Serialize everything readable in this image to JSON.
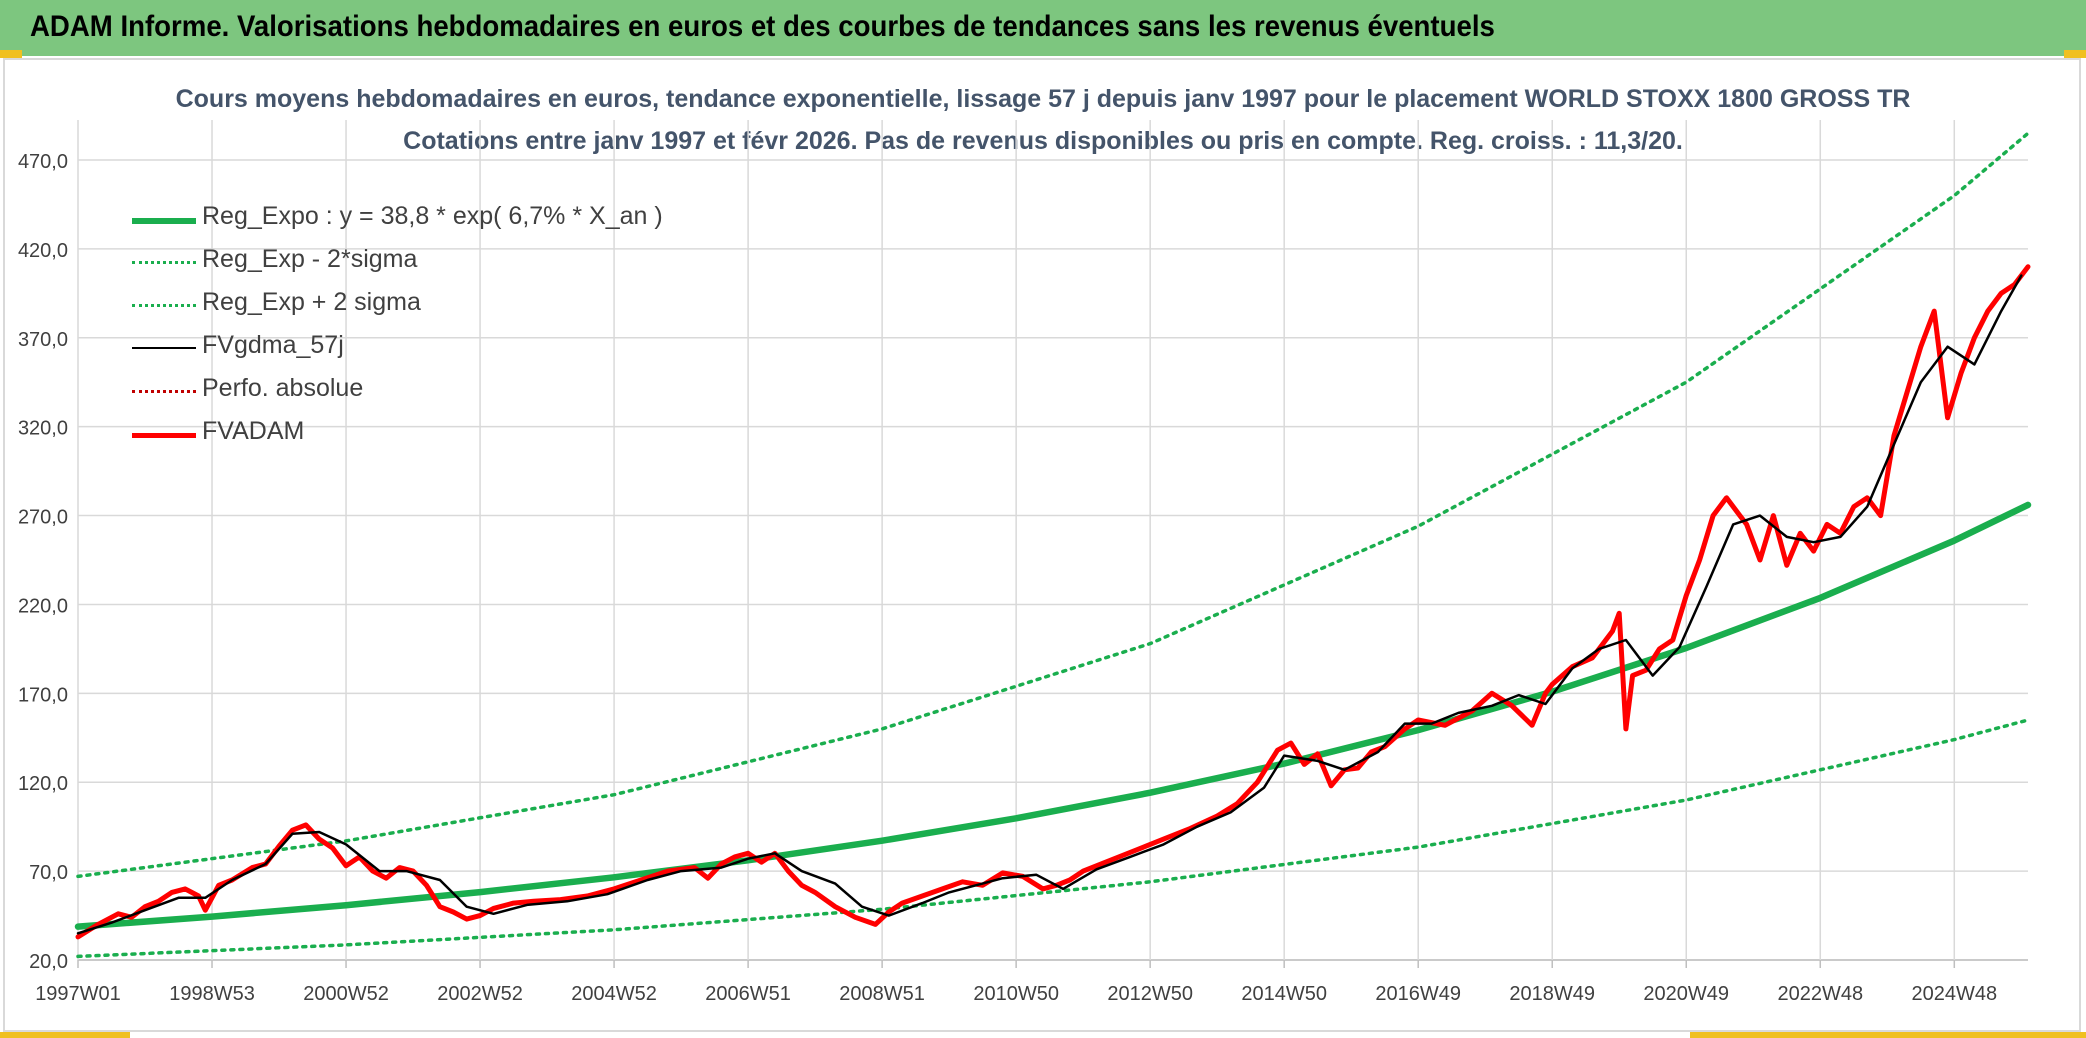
{
  "header": {
    "title": "ADAM Informe. Valorisations hebdomadaires en euros et des courbes de tendances sans les revenus éventuels"
  },
  "colors": {
    "header_bg": "#7dc67f",
    "reg_green": "#1aae4e",
    "fvadam_red": "#ff0000",
    "fvgdma_black": "#000000",
    "perfo_red": "#c00000",
    "grid": "#d9d9d9",
    "title_text": "#44546a",
    "axis_text": "#404040"
  },
  "chart_data": {
    "type": "line",
    "title": "Cours moyens hebdomadaires en euros, tendance exponentielle, lissage 57 j depuis janv 1997 pour le placement WORLD STOXX 1800 GROSS TR",
    "subtitle": "Cotations entre janv 1997 et févr 2026. Pas de revenus disponibles ou pris en compte. Reg. croiss. : 11,3/20.",
    "x_range": [
      1997.0,
      2026.1
    ],
    "ylim": [
      20,
      470
    ],
    "y_ticks": [
      "20,0",
      "70,0",
      "120,0",
      "170,0",
      "220,0",
      "270,0",
      "320,0",
      "370,0",
      "420,0",
      "470,0"
    ],
    "x_tick_labels": [
      "1997W01",
      "1998W53",
      "2000W52",
      "2002W52",
      "2004W52",
      "2006W51",
      "2008W51",
      "2010W50",
      "2012W50",
      "2014W50",
      "2016W49",
      "2018W49",
      "2020W49",
      "2022W48",
      "2024W48"
    ],
    "x_tick_positions": [
      1997.0,
      1999.0,
      2001.0,
      2003.0,
      2005.0,
      2007.0,
      2009.0,
      2011.0,
      2013.0,
      2015.0,
      2017.0,
      2019.0,
      2021.0,
      2023.0,
      2025.0
    ],
    "grid": true,
    "legend_position": "top-left",
    "series": [
      {
        "name": "Reg_Expo : y = 38,8 * exp( 6,7% *  X_an )",
        "style": "solid-thick",
        "color": "#1aae4e",
        "x": [
          1997,
          1999,
          2001,
          2003,
          2005,
          2007,
          2009,
          2011,
          2013,
          2015,
          2017,
          2019,
          2021,
          2023,
          2025,
          2026.1
        ],
        "values": [
          38.8,
          44.4,
          50.8,
          58.2,
          66.5,
          76.1,
          87.1,
          99.7,
          114.1,
          130.5,
          149.3,
          170.9,
          195.5,
          223.7,
          255.9,
          276
        ]
      },
      {
        "name": "Reg_Exp - 2*sigma",
        "style": "dotted",
        "color": "#1aae4e",
        "x": [
          1997,
          2001,
          2005,
          2009,
          2013,
          2017,
          2021,
          2025,
          2026.1
        ],
        "values": [
          22,
          28.5,
          37,
          48.5,
          64,
          83.5,
          110,
          144,
          155
        ]
      },
      {
        "name": "Reg_Exp + 2 sigma",
        "style": "dotted",
        "color": "#1aae4e",
        "x": [
          1997,
          2001,
          2005,
          2009,
          2013,
          2017,
          2021,
          2025,
          2026.1
        ],
        "values": [
          67,
          87,
          113,
          150,
          198,
          264,
          345,
          450,
          485
        ]
      },
      {
        "name": "FVgdma_57j",
        "style": "solid",
        "color": "#000000",
        "x": [
          1997.0,
          1997.5,
          1998.0,
          1998.5,
          1998.9,
          1999.3,
          1999.8,
          2000.2,
          2000.6,
          2001.0,
          2001.5,
          2001.9,
          2002.4,
          2002.8,
          2003.2,
          2003.7,
          2004.3,
          2004.9,
          2005.5,
          2006.0,
          2006.6,
          2007.0,
          2007.4,
          2007.8,
          2008.3,
          2008.7,
          2009.1,
          2009.6,
          2010.0,
          2010.4,
          2010.8,
          2011.3,
          2011.7,
          2012.2,
          2012.7,
          2013.2,
          2013.7,
          2014.2,
          2014.7,
          2015.0,
          2015.5,
          2015.9,
          2016.4,
          2016.8,
          2017.2,
          2017.6,
          2018.1,
          2018.5,
          2018.9,
          2019.3,
          2019.7,
          2020.1,
          2020.5,
          2020.9,
          2021.3,
          2021.7,
          2022.1,
          2022.5,
          2022.9,
          2023.3,
          2023.7,
          2024.1,
          2024.5,
          2024.9,
          2025.3,
          2025.7,
          2026.0
        ],
        "values": [
          35,
          41,
          48,
          55,
          55,
          65,
          74,
          91,
          92,
          85,
          70,
          70,
          65,
          50,
          46,
          51,
          53,
          57,
          65,
          70,
          72,
          77,
          80,
          70,
          63,
          50,
          45,
          52,
          58,
          62,
          66,
          68,
          60,
          71,
          78,
          85,
          95,
          103,
          117,
          135,
          132,
          127,
          137,
          153,
          153,
          159,
          163,
          169,
          164,
          184,
          195,
          200,
          180,
          196,
          230,
          265,
          270,
          258,
          255,
          258,
          275,
          310,
          345,
          365,
          355,
          385,
          405
        ]
      },
      {
        "name": "Perfo. absolue",
        "style": "dotted",
        "color": "#c00000",
        "x": [],
        "values": []
      },
      {
        "name": "FVADAM",
        "style": "solid-thick",
        "color": "#ff0000",
        "x": [
          1997.0,
          1997.3,
          1997.6,
          1997.8,
          1998.0,
          1998.2,
          1998.4,
          1998.6,
          1998.8,
          1998.9,
          1999.1,
          1999.3,
          1999.6,
          1999.8,
          2000.0,
          2000.2,
          2000.4,
          2000.6,
          2000.8,
          2001.0,
          2001.2,
          2001.4,
          2001.6,
          2001.8,
          2002.0,
          2002.2,
          2002.4,
          2002.6,
          2002.8,
          2003.0,
          2003.2,
          2003.5,
          2003.8,
          2004.2,
          2004.6,
          2005.0,
          2005.4,
          2005.8,
          2006.2,
          2006.4,
          2006.6,
          2006.8,
          2007.0,
          2007.2,
          2007.4,
          2007.6,
          2007.8,
          2008.0,
          2008.3,
          2008.6,
          2008.9,
          2009.1,
          2009.3,
          2009.6,
          2009.9,
          2010.2,
          2010.5,
          2010.8,
          2011.1,
          2011.4,
          2011.6,
          2011.8,
          2012.0,
          2012.4,
          2012.8,
          2013.2,
          2013.6,
          2014.0,
          2014.3,
          2014.6,
          2014.9,
          2015.1,
          2015.3,
          2015.5,
          2015.7,
          2015.9,
          2016.1,
          2016.3,
          2016.5,
          2016.8,
          2017.0,
          2017.4,
          2017.8,
          2018.1,
          2018.4,
          2018.7,
          2018.9,
          2019.0,
          2019.3,
          2019.6,
          2019.9,
          2020.0,
          2020.1,
          2020.2,
          2020.4,
          2020.6,
          2020.8,
          2021.0,
          2021.2,
          2021.4,
          2021.6,
          2021.8,
          2021.9,
          2022.1,
          2022.3,
          2022.5,
          2022.7,
          2022.9,
          2023.1,
          2023.3,
          2023.5,
          2023.7,
          2023.9,
          2024.1,
          2024.3,
          2024.5,
          2024.7,
          2024.9,
          2025.1,
          2025.2,
          2025.3,
          2025.5,
          2025.7,
          2025.9,
          2026.1
        ],
        "values": [
          33,
          40,
          46,
          44,
          50,
          53,
          58,
          60,
          56,
          48,
          62,
          65,
          72,
          74,
          84,
          93,
          96,
          88,
          83,
          73,
          78,
          70,
          66,
          72,
          70,
          62,
          50,
          47,
          43,
          45,
          49,
          52,
          53,
          54,
          56,
          60,
          65,
          70,
          72,
          66,
          74,
          78,
          80,
          75,
          80,
          70,
          62,
          58,
          50,
          44,
          40,
          47,
          52,
          56,
          60,
          64,
          62,
          69,
          67,
          60,
          62,
          65,
          70,
          76,
          82,
          88,
          94,
          101,
          108,
          120,
          138,
          142,
          130,
          136,
          118,
          127,
          128,
          137,
          140,
          150,
          155,
          152,
          160,
          170,
          163,
          152,
          170,
          175,
          185,
          190,
          205,
          215,
          150,
          180,
          183,
          195,
          200,
          225,
          245,
          270,
          280,
          270,
          265,
          245,
          270,
          242,
          260,
          250,
          265,
          260,
          275,
          280,
          270,
          315,
          340,
          365,
          385,
          325,
          350,
          360,
          370,
          385,
          395,
          400,
          410
        ]
      }
    ]
  }
}
